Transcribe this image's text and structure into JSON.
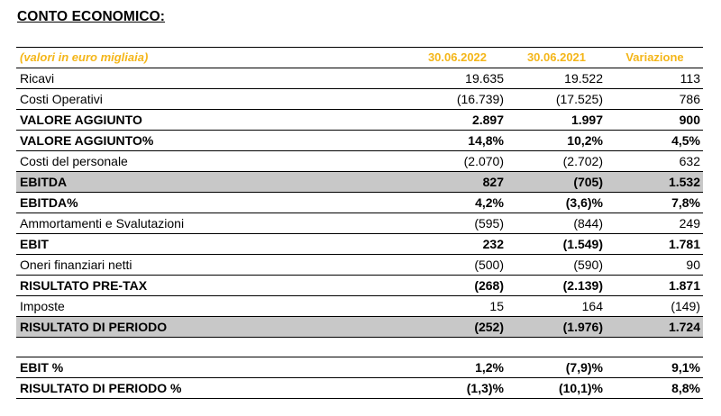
{
  "title": "CONTO ECONOMICO:",
  "header": {
    "label": "(valori in euro migliaia)",
    "col1": "30.06.2022",
    "col2": "30.06.2021",
    "col3": "Variazione"
  },
  "rows": [
    {
      "label": "Ricavi",
      "v1": "19.635",
      "v2": "19.522",
      "v3": "113"
    },
    {
      "label": "Costi Operativi",
      "v1": "(16.739)",
      "v2": "(17.525)",
      "v3": "786"
    },
    {
      "label": "VALORE AGGIUNTO",
      "v1": "2.897",
      "v2": "1.997",
      "v3": "900"
    },
    {
      "label": "VALORE AGGIUNTO%",
      "v1": "14,8%",
      "v2": "10,2%",
      "v3": "4,5%"
    },
    {
      "label": "Costi del personale",
      "v1": "(2.070)",
      "v2": "(2.702)",
      "v3": "632"
    },
    {
      "label": "EBITDA",
      "v1": "827",
      "v2": "(705)",
      "v3": "1.532"
    },
    {
      "label": "EBITDA%",
      "v1": "4,2%",
      "v2": "(3,6)%",
      "v3": "7,8%"
    },
    {
      "label": "Ammortamenti e Svalutazioni",
      "v1": "(595)",
      "v2": "(844)",
      "v3": "249"
    },
    {
      "label": "EBIT",
      "v1": "232",
      "v2": "(1.549)",
      "v3": "1.781"
    },
    {
      "label": "Oneri finanziari netti",
      "v1": "(500)",
      "v2": "(590)",
      "v3": "90"
    },
    {
      "label": "RISULTATO PRE-TAX",
      "v1": "(268)",
      "v2": "(2.139)",
      "v3": "1.871"
    },
    {
      "label": "Imposte",
      "v1": "15",
      "v2": "164",
      "v3": "(149)"
    },
    {
      "label": "RISULTATO DI PERIODO",
      "v1": "(252)",
      "v2": "(1.976)",
      "v3": "1.724"
    }
  ],
  "ratios": [
    {
      "label": "EBIT %",
      "v1": "1,2%",
      "v2": "(7,9)%",
      "v3": "9,1%"
    },
    {
      "label": "RISULTATO DI PERIODO %",
      "v1": "(1,3)%",
      "v2": "(10,1)%",
      "v3": "8,8%"
    }
  ],
  "colors": {
    "header_text": "#f4b61a",
    "highlight_row": "#c8c8c8"
  }
}
